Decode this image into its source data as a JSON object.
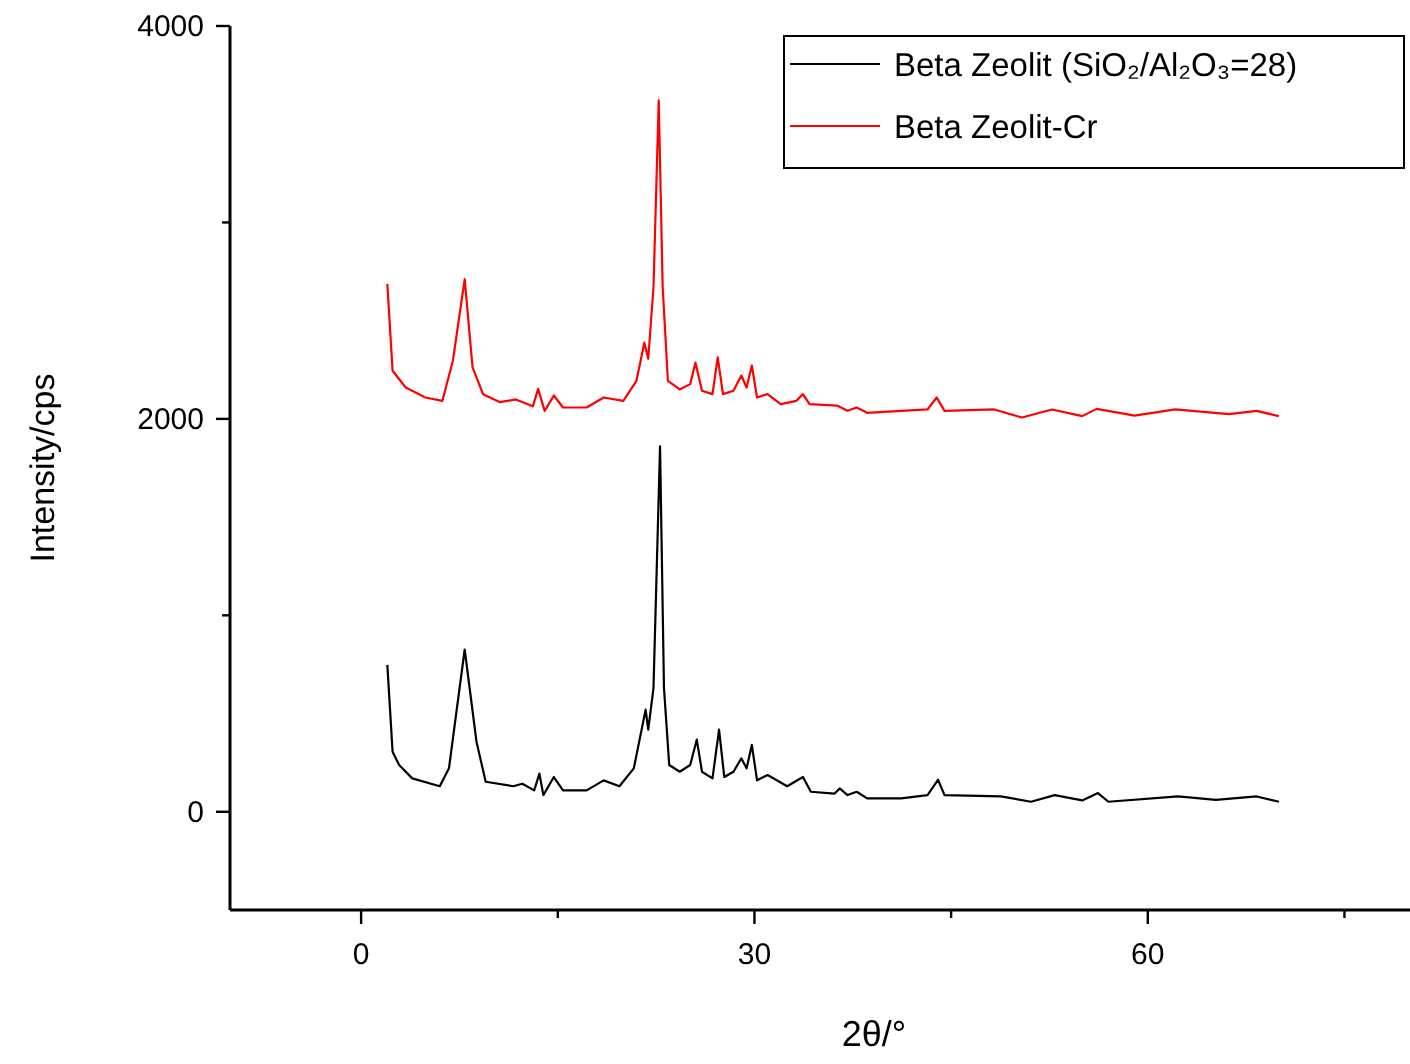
{
  "chart_data": {
    "type": "line",
    "xlabel": "2θ/°",
    "ylabel": "Intensity/cps",
    "xlim": [
      -10,
      80
    ],
    "ylim": [
      -500,
      4000
    ],
    "xticks": [
      0,
      {
        "value": 15,
        "label": null
      },
      30,
      {
        "value": 45,
        "label": null
      },
      60,
      {
        "value": 75,
        "label": null
      }
    ],
    "yticks": [
      0,
      {
        "value": 1000,
        "label": null
      },
      2000,
      {
        "value": 3000,
        "label": null
      },
      4000
    ],
    "grid": false,
    "legend": "top right",
    "marker": "none",
    "line_style": "solid",
    "series": [
      {
        "name": "Beta Zeolit (SiO₂/Al₂O₃=28)",
        "color": "#000000",
        "x": [
          2.0,
          2.4,
          2.9,
          3.9,
          6.0,
          6.7,
          7.9,
          8.8,
          9.5,
          11.6,
          12.3,
          13.2,
          13.6,
          13.9,
          14.7,
          15.4,
          17.2,
          18.5,
          19.7,
          20.8,
          21.7,
          21.9,
          22.3,
          22.8,
          23.1,
          23.5,
          24.3,
          25.1,
          25.6,
          26.0,
          26.8,
          27.3,
          27.7,
          28.4,
          29.0,
          29.4,
          29.8,
          30.2,
          31.0,
          32.5,
          33.7,
          34.3,
          36.1,
          36.5,
          37.1,
          37.8,
          38.6,
          41.2,
          43.2,
          44.0,
          44.5,
          48.8,
          51.1,
          52.9,
          55.0,
          56.2,
          57.0,
          62.3,
          65.2,
          68.3,
          70.0
        ],
        "values": [
          748,
          306,
          238,
          170,
          130,
          221,
          826,
          357,
          153,
          130,
          143,
          109,
          194,
          85,
          177,
          109,
          109,
          160,
          130,
          221,
          520,
          418,
          630,
          1860,
          630,
          238,
          204,
          238,
          367,
          204,
          170,
          418,
          177,
          204,
          272,
          221,
          340,
          160,
          187,
          130,
          177,
          102,
          92,
          119,
          85,
          102,
          68,
          68,
          85,
          163,
          85,
          78,
          51,
          85,
          58,
          95,
          51,
          78,
          61,
          78,
          51
        ]
      },
      {
        "name": "Beta Zeolit-Cr",
        "color": "#ff0000",
        "x": [
          2.0,
          2.4,
          3.4,
          4.9,
          6.2,
          7.0,
          7.9,
          8.5,
          9.3,
          10.6,
          11.8,
          13.1,
          13.5,
          14.0,
          14.7,
          15.4,
          17.2,
          18.5,
          20.0,
          21.0,
          21.6,
          21.9,
          22.3,
          22.7,
          23.0,
          23.4,
          24.3,
          25.1,
          25.5,
          26.0,
          26.8,
          27.2,
          27.6,
          28.4,
          29.0,
          29.4,
          29.8,
          30.2,
          31.0,
          32.0,
          33.2,
          33.7,
          34.2,
          36.3,
          37.1,
          37.8,
          38.6,
          41.2,
          43.2,
          43.9,
          44.5,
          48.3,
          50.4,
          52.7,
          55.0,
          56.1,
          59.0,
          62.1,
          66.2,
          68.3,
          70.0
        ],
        "values": [
          2687,
          2245,
          2160,
          2109,
          2092,
          2296,
          2711,
          2262,
          2126,
          2085,
          2099,
          2064,
          2153,
          2041,
          2119,
          2058,
          2058,
          2109,
          2092,
          2194,
          2388,
          2306,
          2670,
          3622,
          2670,
          2194,
          2150,
          2177,
          2286,
          2143,
          2126,
          2313,
          2126,
          2143,
          2221,
          2160,
          2272,
          2109,
          2126,
          2075,
          2092,
          2126,
          2075,
          2068,
          2041,
          2058,
          2031,
          2041,
          2048,
          2109,
          2041,
          2048,
          2007,
          2048,
          2014,
          2051,
          2017,
          2048,
          2024,
          2041,
          2014
        ]
      }
    ]
  }
}
